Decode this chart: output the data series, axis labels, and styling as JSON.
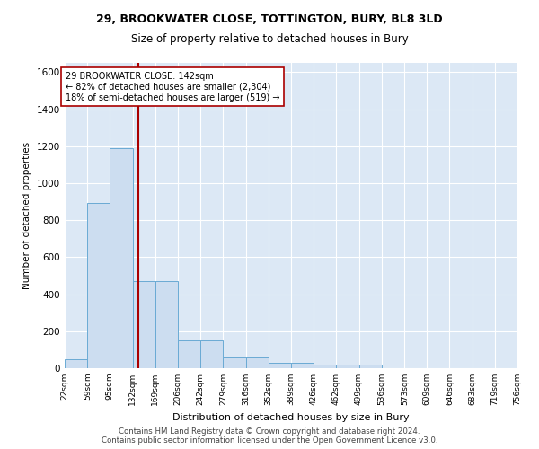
{
  "title1": "29, BROOKWATER CLOSE, TOTTINGTON, BURY, BL8 3LD",
  "title2": "Size of property relative to detached houses in Bury",
  "xlabel": "Distribution of detached houses by size in Bury",
  "ylabel": "Number of detached properties",
  "bin_edges": [
    22,
    59,
    95,
    132,
    169,
    206,
    242,
    279,
    316,
    352,
    389,
    426,
    462,
    499,
    536,
    573,
    609,
    646,
    683,
    719,
    756
  ],
  "bar_heights": [
    50,
    893,
    1191,
    470,
    470,
    150,
    150,
    57,
    57,
    30,
    30,
    20,
    20,
    20,
    0,
    0,
    0,
    0,
    0,
    0
  ],
  "property_size": 142,
  "bar_facecolor": "#ccddf0",
  "bar_edgecolor": "#6aaad4",
  "vline_color": "#aa0000",
  "vline_x": 142,
  "annotation_text1": "29 BROOKWATER CLOSE: 142sqm",
  "annotation_text2": "← 82% of detached houses are smaller (2,304)",
  "annotation_text3": "18% of semi-detached houses are larger (519) →",
  "annotation_box_facecolor": "white",
  "annotation_box_edgecolor": "#aa0000",
  "ylim": [
    0,
    1650
  ],
  "yticks": [
    0,
    200,
    400,
    600,
    800,
    1000,
    1200,
    1400,
    1600
  ],
  "background_color": "#dce8f5",
  "grid_color": "white",
  "footer1": "Contains HM Land Registry data © Crown copyright and database right 2024.",
  "footer2": "Contains public sector information licensed under the Open Government Licence v3.0."
}
